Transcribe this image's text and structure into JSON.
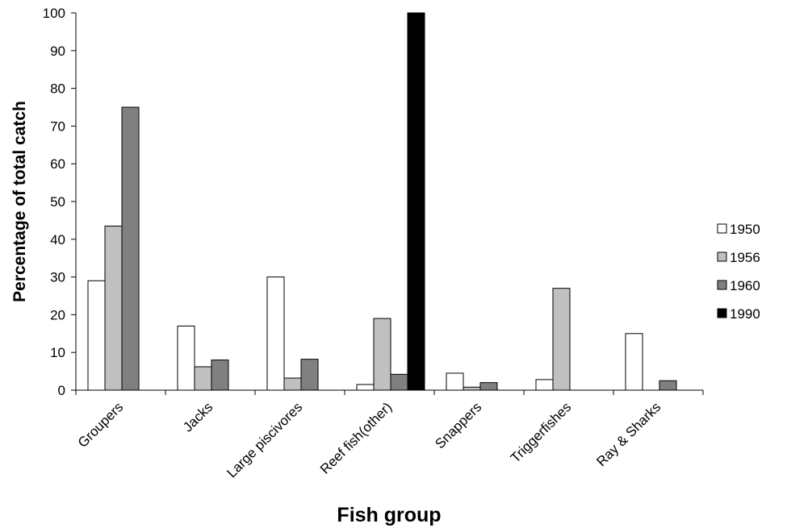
{
  "chart_data": {
    "type": "bar",
    "title": "",
    "xlabel": "Fish group",
    "ylabel": "Percentage of total catch",
    "ylim": [
      0,
      100
    ],
    "yticks": [
      0,
      10,
      20,
      30,
      40,
      50,
      60,
      70,
      80,
      90,
      100
    ],
    "grid": false,
    "legend_position": "right",
    "categories": [
      "Groupers",
      "Jacks",
      "Large piscivores",
      "Reef fish(other)",
      "Snappers",
      "Triggerfishes",
      "Ray & Sharks"
    ],
    "series": [
      {
        "name": "1950",
        "color": "#ffffff",
        "values": [
          29,
          17,
          30,
          1.5,
          4.5,
          2.8,
          15
        ]
      },
      {
        "name": "1956",
        "color": "#c0c0c0",
        "values": [
          43.5,
          6.2,
          3.2,
          19,
          0.8,
          27,
          0
        ]
      },
      {
        "name": "1960",
        "color": "#808080",
        "values": [
          75,
          8,
          8.2,
          4.2,
          2,
          0,
          2.5
        ]
      },
      {
        "name": "1990",
        "color": "#000000",
        "values": [
          0,
          0,
          0,
          100,
          0,
          0,
          0
        ]
      }
    ]
  }
}
